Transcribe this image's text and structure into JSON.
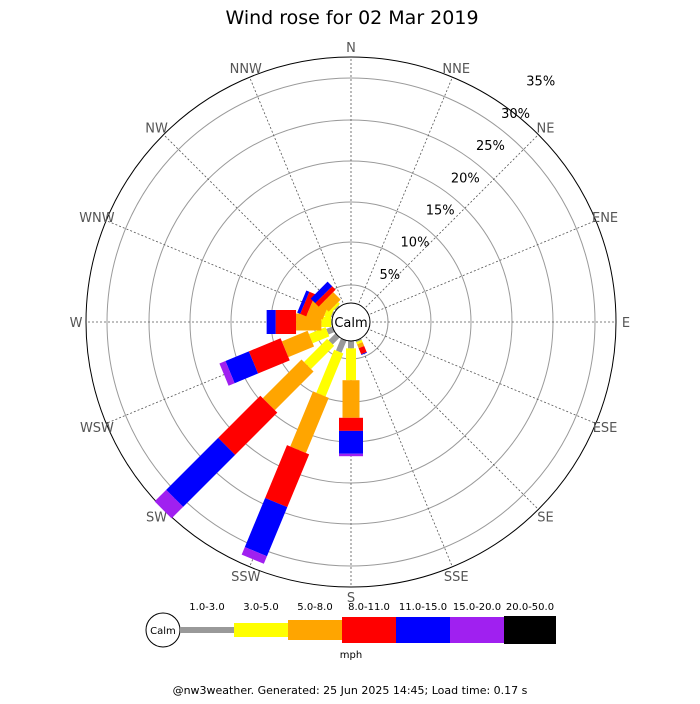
{
  "chart_data": {
    "type": "wind-rose",
    "title": "Wind rose for 02 Mar 2019",
    "directions": [
      "N",
      "NNE",
      "NE",
      "ENE",
      "E",
      "ESE",
      "SE",
      "SSE",
      "S",
      "SSW",
      "SW",
      "WSW",
      "W",
      "WNW",
      "NW",
      "NNW"
    ],
    "radial_ticks": [
      "5%",
      "10%",
      "15%",
      "20%",
      "25%",
      "30%",
      "35%"
    ],
    "radial_tick_values": [
      5,
      10,
      15,
      20,
      25,
      30,
      35
    ],
    "center_label": "Calm",
    "units": "mph",
    "speed_bins": [
      {
        "label": "1.0-3.0",
        "color": "#999999"
      },
      {
        "label": "3.0-5.0",
        "color": "#ffff00"
      },
      {
        "label": "5.0-8.0",
        "color": "#ffa500"
      },
      {
        "label": "8.0-11.0",
        "color": "#ff0000"
      },
      {
        "label": "11.0-15.0",
        "color": "#0000ff"
      },
      {
        "label": "15.0-20.0",
        "color": "#a020f0"
      },
      {
        "label": "20.0-50.0",
        "color": "#000000"
      }
    ],
    "series_percent": {
      "SSE": [
        0.2,
        0.3,
        0.5,
        0.8,
        0.1,
        0.0,
        0.0
      ],
      "S": [
        0.9,
        3.9,
        4.6,
        1.6,
        2.8,
        0.3,
        0.0
      ],
      "SSW": [
        1.6,
        5.7,
        7.3,
        7.0,
        6.5,
        1.0,
        0.0
      ],
      "SW": [
        1.2,
        4.0,
        6.7,
        7.3,
        9.0,
        2.0,
        0.0
      ],
      "WSW": [
        0.8,
        2.2,
        3.4,
        4.2,
        3.1,
        0.8,
        0.0
      ],
      "W": [
        0.1,
        1.2,
        3.1,
        2.5,
        1.1,
        0.0,
        0.0
      ],
      "WNW": [
        0.2,
        0.8,
        2.0,
        0.8,
        0.4,
        0.0,
        0.0
      ],
      "NW": [
        0.2,
        0.3,
        1.3,
        0.6,
        0.8,
        0.0,
        0.0
      ]
    },
    "grid": true
  },
  "footer": "@nw3weather. Generated: 25 Jun 2025 14:45; Load time: 0.17 s"
}
